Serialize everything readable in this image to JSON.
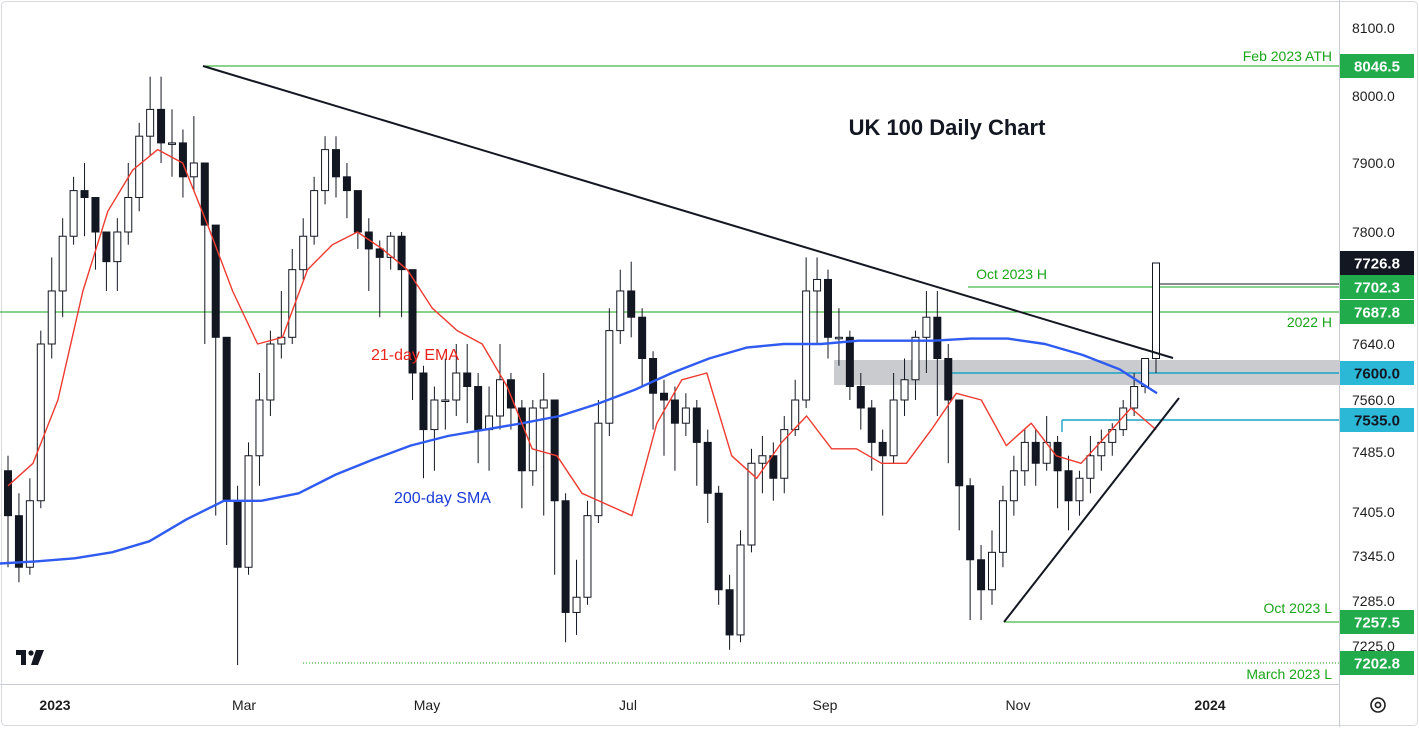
{
  "chart_data": {
    "type": "candlestick",
    "title": "UK 100 Daily Chart",
    "x_tick_labels": [
      "2023",
      "Mar",
      "May",
      "Jul",
      "Sep",
      "Nov",
      "2024"
    ],
    "y_tick_labels": [
      "8100.0",
      "8000.0",
      "7900.0",
      "7800.0",
      "7640.0",
      "7560.0",
      "7485.0",
      "7405.0",
      "7345.0",
      "7285.0",
      "7225.0"
    ],
    "ylim": [
      7190,
      8130
    ],
    "grid": false,
    "price_tags": [
      {
        "label": "8046.5",
        "value": 8046.5,
        "style": "green"
      },
      {
        "label": "7726.8",
        "value": 7726.8,
        "style": "black"
      },
      {
        "label": "7702.3",
        "value": 7702.3,
        "style": "green"
      },
      {
        "label": "7687.8",
        "value": 7687.8,
        "style": "green"
      },
      {
        "label": "7600.0",
        "value": 7600.0,
        "style": "cyan"
      },
      {
        "label": "7535.0",
        "value": 7535.0,
        "style": "cyan"
      },
      {
        "label": "7257.5",
        "value": 7257.5,
        "style": "green"
      },
      {
        "label": "7202.8",
        "value": 7202.8,
        "style": "green"
      }
    ],
    "levels": [
      {
        "label": "Feb 2023 ATH",
        "value": 8046.5,
        "color": "#1aa51a"
      },
      {
        "label": "2022 H",
        "value": 7687.8,
        "color": "#1aa51a"
      },
      {
        "label": "Oct 2023 H",
        "value": 7702.3,
        "color": "#1aa51a"
      },
      {
        "label": "Oct 2023 L",
        "value": 7257.5,
        "color": "#1aa51a"
      },
      {
        "label": "March 2023 L",
        "value": 7202.8,
        "color": "#1aa51a"
      }
    ],
    "zone": {
      "from": 7582,
      "to": 7618,
      "color": "#c9cbcf"
    },
    "annotations": [
      {
        "label": "21-day EMA",
        "color": "#e8241c"
      },
      {
        "label": "200-day SMA",
        "color": "#1a3ad6"
      }
    ],
    "ema21": {
      "name": "21-day EMA",
      "color": "#ee3b30",
      "values": [
        7440,
        7470,
        7560,
        7700,
        7830,
        7890,
        7920,
        7900,
        7810,
        7700,
        7640,
        7650,
        7720,
        7770,
        7800,
        7760,
        7720,
        7690,
        7660,
        7640,
        7580,
        7490,
        7480,
        7430,
        7415,
        7400,
        7530,
        7590,
        7600,
        7480,
        7450,
        7500,
        7540,
        7490,
        7490,
        7470,
        7470,
        7520,
        7570,
        7560,
        7495,
        7530,
        7480,
        7470,
        7510,
        7550,
        7520
      ]
    },
    "sma200": {
      "name": "200-day SMA",
      "color": "#2f5bf0",
      "values": [
        7335,
        7338,
        7342,
        7350,
        7365,
        7395,
        7420,
        7420,
        7430,
        7455,
        7475,
        7495,
        7510,
        7520,
        7530,
        7540,
        7555,
        7575,
        7600,
        7620,
        7635,
        7640,
        7640,
        7645,
        7645,
        7645,
        7648,
        7648,
        7640,
        7625,
        7605,
        7570
      ]
    },
    "candles": [
      [
        7460,
        7400,
        7480,
        7330
      ],
      [
        7400,
        7330,
        7430,
        7310
      ],
      [
        7330,
        7420,
        7450,
        7320
      ],
      [
        7420,
        7640,
        7660,
        7410
      ],
      [
        7640,
        7700,
        7740,
        7620
      ],
      [
        7700,
        7790,
        7820,
        7680
      ],
      [
        7790,
        7860,
        7880,
        7770
      ],
      [
        7860,
        7850,
        7900,
        7790
      ],
      [
        7850,
        7800,
        7850,
        7720
      ],
      [
        7800,
        7730,
        7800,
        7700
      ],
      [
        7730,
        7800,
        7820,
        7700
      ],
      [
        7800,
        7850,
        7900,
        7770
      ],
      [
        7850,
        7940,
        7960,
        7830
      ],
      [
        7940,
        7980,
        8030,
        7910
      ],
      [
        7980,
        7930,
        8030,
        7900
      ],
      [
        7930,
        7930,
        7980,
        7880
      ],
      [
        7930,
        7880,
        7950,
        7850
      ],
      [
        7880,
        7900,
        7970,
        7860
      ],
      [
        7900,
        7810,
        7900,
        7640
      ],
      [
        7810,
        7650,
        7810,
        7400
      ],
      [
        7650,
        7420,
        7650,
        7360
      ],
      [
        7420,
        7330,
        7440,
        7200
      ],
      [
        7330,
        7480,
        7500,
        7320
      ],
      [
        7480,
        7560,
        7600,
        7440
      ],
      [
        7560,
        7640,
        7660,
        7540
      ],
      [
        7640,
        7650,
        7700,
        7620
      ],
      [
        7650,
        7720,
        7760,
        7640
      ],
      [
        7720,
        7790,
        7820,
        7710
      ],
      [
        7790,
        7860,
        7880,
        7770
      ],
      [
        7860,
        7920,
        7940,
        7840
      ],
      [
        7920,
        7880,
        7940,
        7850
      ],
      [
        7880,
        7860,
        7900,
        7820
      ],
      [
        7860,
        7800,
        7860,
        7760
      ],
      [
        7800,
        7760,
        7820,
        7700
      ],
      [
        7760,
        7740,
        7780,
        7680
      ],
      [
        7740,
        7790,
        7800,
        7720
      ],
      [
        7790,
        7720,
        7800,
        7680
      ],
      [
        7720,
        7600,
        7720,
        7560
      ],
      [
        7600,
        7520,
        7610,
        7450
      ],
      [
        7520,
        7560,
        7580,
        7460
      ],
      [
        7560,
        7560,
        7620,
        7520
      ],
      [
        7560,
        7600,
        7640,
        7540
      ],
      [
        7600,
        7580,
        7640,
        7530
      ],
      [
        7580,
        7520,
        7600,
        7470
      ],
      [
        7520,
        7540,
        7580,
        7460
      ],
      [
        7540,
        7590,
        7640,
        7520
      ],
      [
        7590,
        7550,
        7600,
        7520
      ],
      [
        7550,
        7460,
        7560,
        7410
      ],
      [
        7460,
        7550,
        7560,
        7440
      ],
      [
        7550,
        7560,
        7600,
        7400
      ],
      [
        7560,
        7420,
        7560,
        7320
      ],
      [
        7420,
        7270,
        7430,
        7230
      ],
      [
        7270,
        7290,
        7340,
        7240
      ],
      [
        7290,
        7400,
        7420,
        7280
      ],
      [
        7400,
        7530,
        7560,
        7390
      ],
      [
        7530,
        7660,
        7690,
        7510
      ],
      [
        7660,
        7700,
        7720,
        7640
      ],
      [
        7700,
        7680,
        7730,
        7650
      ],
      [
        7680,
        7620,
        7690,
        7580
      ],
      [
        7620,
        7570,
        7630,
        7520
      ],
      [
        7570,
        7560,
        7590,
        7480
      ],
      [
        7560,
        7530,
        7580,
        7460
      ],
      [
        7530,
        7550,
        7570,
        7510
      ],
      [
        7550,
        7500,
        7560,
        7440
      ],
      [
        7500,
        7430,
        7520,
        7390
      ],
      [
        7430,
        7300,
        7440,
        7280
      ],
      [
        7300,
        7240,
        7320,
        7220
      ],
      [
        7240,
        7360,
        7380,
        7230
      ],
      [
        7360,
        7470,
        7490,
        7350
      ],
      [
        7470,
        7480,
        7510,
        7430
      ],
      [
        7480,
        7450,
        7500,
        7420
      ],
      [
        7450,
        7520,
        7540,
        7430
      ],
      [
        7520,
        7560,
        7590,
        7510
      ],
      [
        7560,
        7700,
        7740,
        7550
      ],
      [
        7700,
        7710,
        7740,
        7640
      ],
      [
        7710,
        7650,
        7720,
        7620
      ],
      [
        7650,
        7650,
        7690,
        7610
      ],
      [
        7650,
        7580,
        7660,
        7560
      ],
      [
        7580,
        7550,
        7600,
        7520
      ],
      [
        7550,
        7500,
        7560,
        7460
      ],
      [
        7500,
        7480,
        7520,
        7400
      ],
      [
        7480,
        7560,
        7600,
        7470
      ],
      [
        7560,
        7590,
        7620,
        7540
      ],
      [
        7590,
        7650,
        7660,
        7560
      ],
      [
        7650,
        7680,
        7700,
        7600
      ],
      [
        7680,
        7620,
        7700,
        7540
      ],
      [
        7620,
        7560,
        7640,
        7470
      ],
      [
        7560,
        7440,
        7560,
        7380
      ],
      [
        7440,
        7340,
        7450,
        7260
      ],
      [
        7340,
        7300,
        7360,
        7260
      ],
      [
        7300,
        7350,
        7380,
        7280
      ],
      [
        7350,
        7420,
        7440,
        7330
      ],
      [
        7420,
        7460,
        7480,
        7400
      ],
      [
        7460,
        7500,
        7520,
        7440
      ],
      [
        7500,
        7470,
        7520,
        7440
      ],
      [
        7470,
        7500,
        7540,
        7460
      ],
      [
        7500,
        7460,
        7510,
        7410
      ],
      [
        7460,
        7420,
        7480,
        7380
      ],
      [
        7420,
        7450,
        7460,
        7400
      ],
      [
        7450,
        7480,
        7510,
        7430
      ],
      [
        7480,
        7500,
        7520,
        7460
      ],
      [
        7500,
        7520,
        7530,
        7480
      ],
      [
        7520,
        7550,
        7560,
        7510
      ],
      [
        7550,
        7580,
        7600,
        7540
      ],
      [
        7580,
        7620,
        7620,
        7570
      ],
      [
        7620,
        7726.8,
        7726.8,
        7600
      ]
    ]
  }
}
